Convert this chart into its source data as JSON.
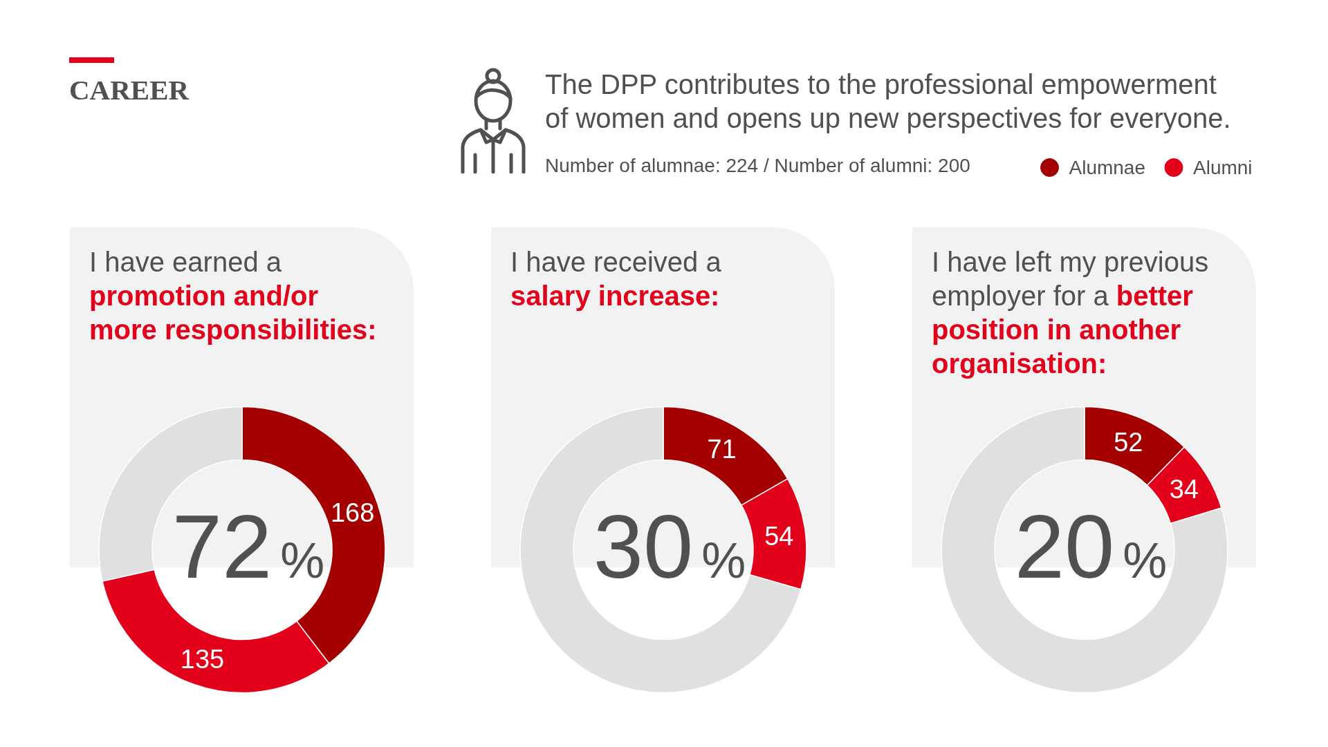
{
  "chart_data": [
    {
      "type": "other",
      "title": "CAREER",
      "subtitle": "The DPP contributes to the professional empowerment of women and opens up new perspectives for everyone.",
      "annotations": [
        "Number of alumnae: 224 / Number of alumni: 200"
      ]
    },
    {
      "type": "donut",
      "title": "I have earned a",
      "subtitle": "promotion and/or more responsibilities:",
      "categories": [
        null,
        null,
        null
      ],
      "values": [
        168,
        135,
        121
      ],
      "colors": [
        "#a50000",
        "#e2001a",
        "#e0e0e0"
      ],
      "value_labels": [
        "168",
        "135",
        null
      ],
      "annotations": [
        "72%"
      ]
    },
    {
      "type": "donut",
      "title": "I have received a",
      "subtitle": "salary increase:",
      "categories": [
        null,
        null,
        null
      ],
      "values": [
        71,
        54,
        299
      ],
      "colors": [
        "#a50000",
        "#e2001a",
        "#e0e0e0"
      ],
      "value_labels": [
        "71",
        "54",
        null
      ],
      "annotations": [
        "30%"
      ]
    },
    {
      "type": "donut",
      "title": "I have left my previous employer for a",
      "subtitle": "better position in another organisation:",
      "categories": [
        "Alumnae",
        "Alumni",
        null
      ],
      "values": [
        52,
        34,
        338
      ],
      "colors": [
        "#a50000",
        "#e2001a",
        "#e0e0e0"
      ],
      "value_labels": [
        "52",
        "34",
        null
      ],
      "annotations": [
        "20%"
      ],
      "legend": "top"
    }
  ]
}
